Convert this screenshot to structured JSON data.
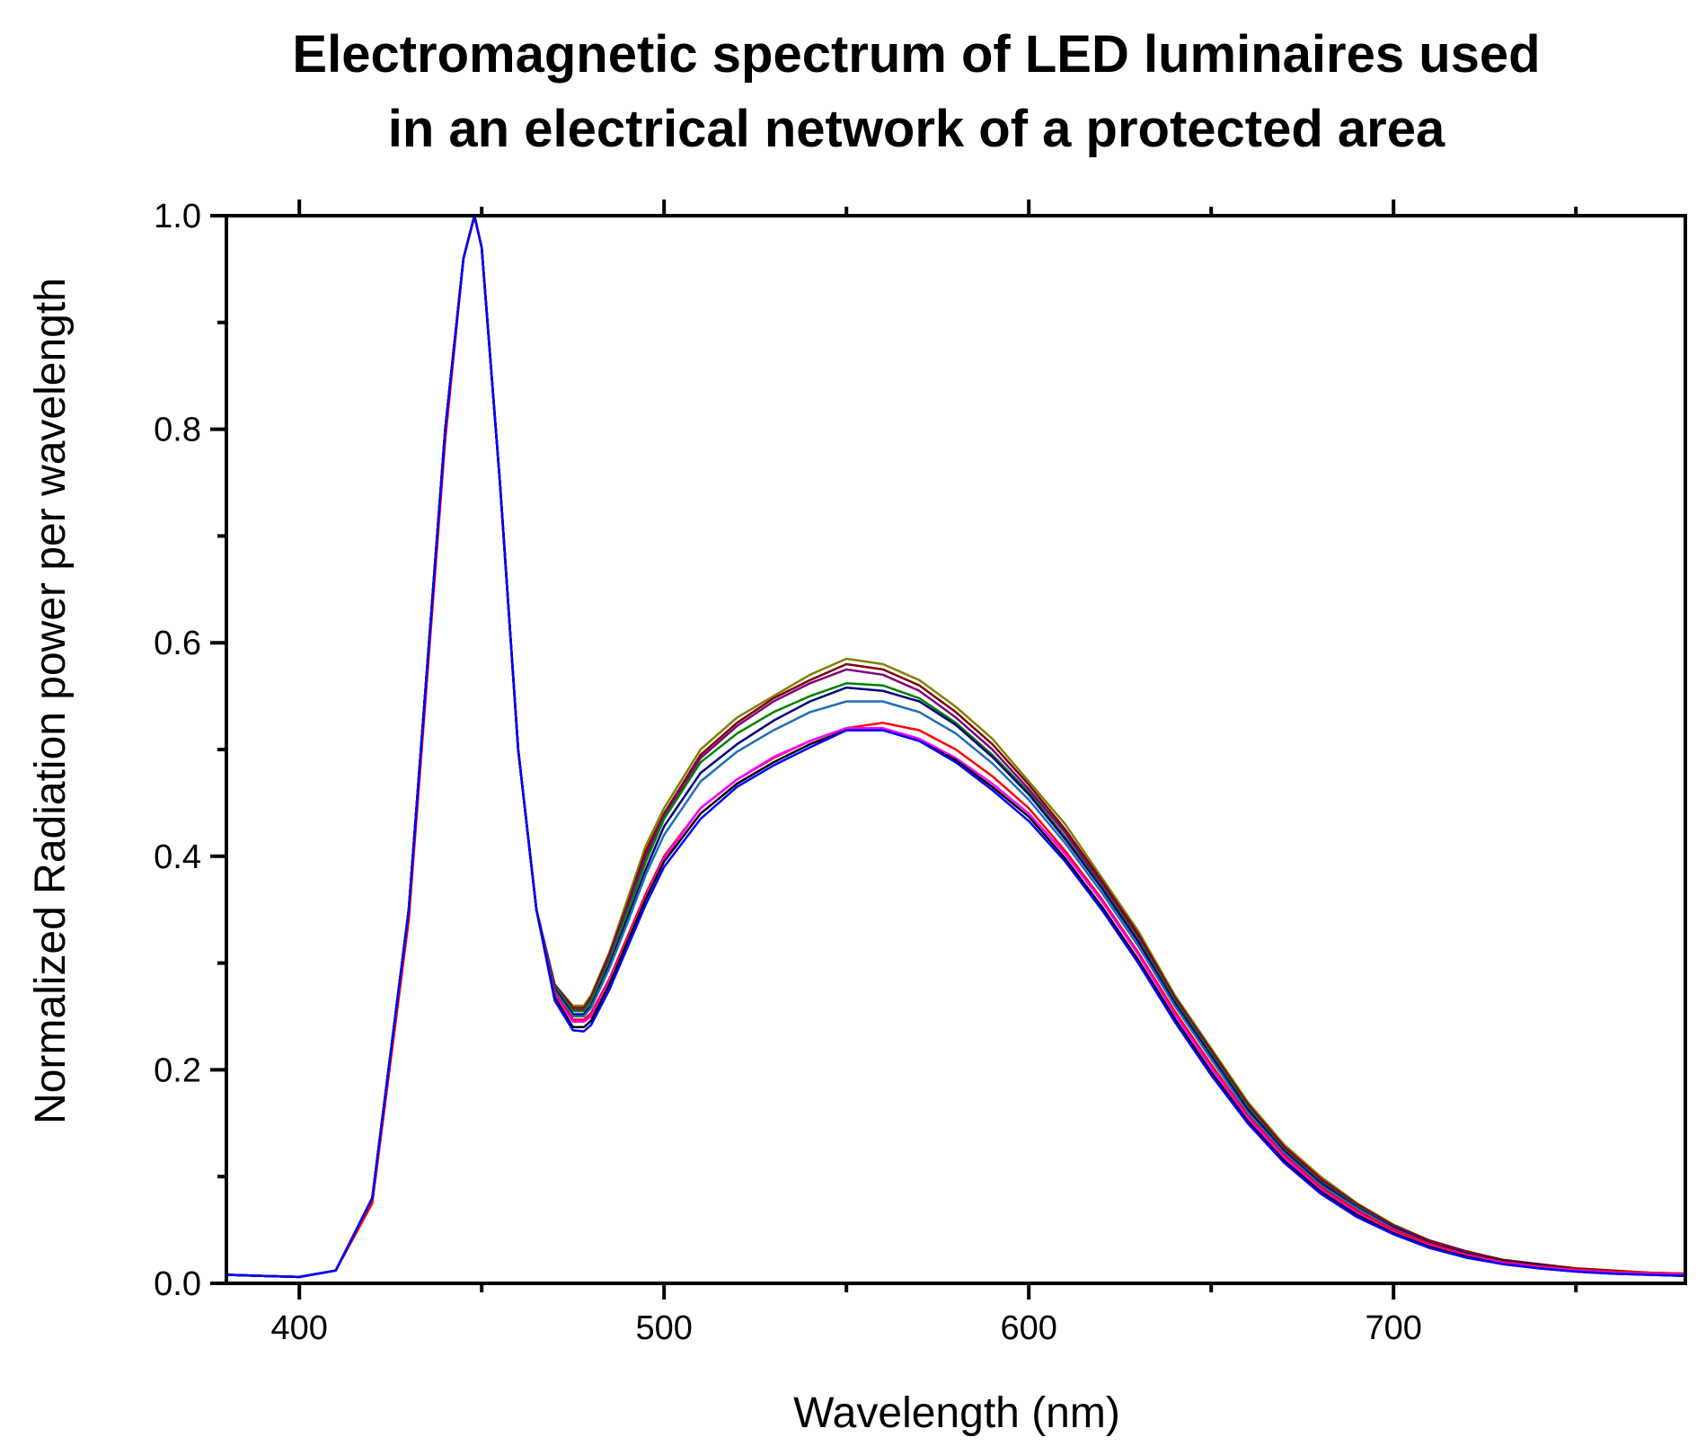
{
  "chart_data": {
    "type": "line",
    "title_lines": [
      "Electromagnetic spectrum of LED luminaires used",
      "in an electrical network of a protected area"
    ],
    "xlabel": "Wavelength (nm)",
    "ylabel": "Normalized Radiation power per wavelength",
    "xlim": [
      380,
      780
    ],
    "ylim": [
      0,
      1.0
    ],
    "xticks": [
      400,
      500,
      600,
      700
    ],
    "xtick_labels": [
      "400",
      "500",
      "600",
      "700"
    ],
    "xminor": [
      450,
      550,
      650,
      750
    ],
    "yticks": [
      0,
      0.2,
      0.4,
      0.6,
      0.8,
      1.0
    ],
    "ytick_labels": [
      "0.0",
      "0.2",
      "0.4",
      "0.6",
      "0.8",
      "1.0"
    ],
    "yminor": [
      0.1,
      0.3,
      0.5,
      0.7,
      0.9
    ],
    "grid": false,
    "legend": "none",
    "x": [
      380,
      390,
      400,
      410,
      420,
      430,
      440,
      445,
      448,
      450,
      455,
      460,
      465,
      470,
      475,
      478,
      480,
      485,
      490,
      495,
      500,
      510,
      520,
      530,
      540,
      550,
      560,
      570,
      580,
      590,
      600,
      610,
      620,
      630,
      640,
      650,
      660,
      670,
      680,
      690,
      700,
      710,
      720,
      730,
      740,
      750,
      760,
      770,
      780
    ],
    "series": [
      {
        "name": "olive",
        "color": "#808000",
        "values": [
          0.008,
          0.007,
          0.006,
          0.012,
          0.08,
          0.35,
          0.8,
          0.96,
          1.0,
          0.97,
          0.75,
          0.5,
          0.35,
          0.28,
          0.26,
          0.26,
          0.27,
          0.31,
          0.36,
          0.41,
          0.445,
          0.5,
          0.53,
          0.55,
          0.57,
          0.585,
          0.58,
          0.565,
          0.54,
          0.51,
          0.47,
          0.43,
          0.38,
          0.33,
          0.27,
          0.22,
          0.17,
          0.13,
          0.1,
          0.075,
          0.055,
          0.04,
          0.03,
          0.022,
          0.018,
          0.014,
          0.012,
          0.01,
          0.009
        ]
      },
      {
        "name": "maroon",
        "color": "#800000",
        "values": [
          0.008,
          0.007,
          0.006,
          0.012,
          0.08,
          0.35,
          0.8,
          0.96,
          1.0,
          0.97,
          0.75,
          0.5,
          0.35,
          0.28,
          0.258,
          0.258,
          0.268,
          0.308,
          0.355,
          0.405,
          0.44,
          0.495,
          0.525,
          0.548,
          0.565,
          0.58,
          0.575,
          0.56,
          0.535,
          0.505,
          0.467,
          0.425,
          0.377,
          0.327,
          0.268,
          0.218,
          0.168,
          0.128,
          0.098,
          0.074,
          0.054,
          0.04,
          0.03,
          0.022,
          0.018,
          0.014,
          0.012,
          0.01,
          0.009
        ]
      },
      {
        "name": "purple",
        "color": "#800080",
        "values": [
          0.008,
          0.007,
          0.006,
          0.012,
          0.08,
          0.35,
          0.8,
          0.96,
          1.0,
          0.97,
          0.75,
          0.5,
          0.35,
          0.28,
          0.256,
          0.256,
          0.266,
          0.305,
          0.352,
          0.4,
          0.438,
          0.492,
          0.522,
          0.545,
          0.562,
          0.575,
          0.57,
          0.555,
          0.53,
          0.5,
          0.463,
          0.422,
          0.374,
          0.324,
          0.266,
          0.216,
          0.166,
          0.126,
          0.096,
          0.073,
          0.053,
          0.039,
          0.029,
          0.021,
          0.017,
          0.013,
          0.011,
          0.009,
          0.008
        ]
      },
      {
        "name": "green",
        "color": "#008000",
        "values": [
          0.008,
          0.007,
          0.006,
          0.012,
          0.08,
          0.35,
          0.8,
          0.96,
          1.0,
          0.97,
          0.75,
          0.5,
          0.35,
          0.278,
          0.255,
          0.255,
          0.264,
          0.302,
          0.348,
          0.395,
          0.435,
          0.488,
          0.515,
          0.535,
          0.55,
          0.562,
          0.56,
          0.548,
          0.525,
          0.495,
          0.46,
          0.418,
          0.372,
          0.322,
          0.265,
          0.215,
          0.165,
          0.125,
          0.095,
          0.072,
          0.052,
          0.038,
          0.028,
          0.021,
          0.017,
          0.013,
          0.011,
          0.009,
          0.008
        ]
      },
      {
        "name": "navy",
        "color": "#000080",
        "values": [
          0.008,
          0.007,
          0.006,
          0.012,
          0.08,
          0.35,
          0.8,
          0.96,
          1.0,
          0.97,
          0.75,
          0.5,
          0.35,
          0.276,
          0.252,
          0.252,
          0.26,
          0.298,
          0.342,
          0.388,
          0.428,
          0.478,
          0.505,
          0.527,
          0.545,
          0.558,
          0.555,
          0.545,
          0.523,
          0.493,
          0.458,
          0.416,
          0.37,
          0.32,
          0.263,
          0.213,
          0.163,
          0.124,
          0.094,
          0.071,
          0.052,
          0.038,
          0.028,
          0.021,
          0.017,
          0.013,
          0.011,
          0.009,
          0.008
        ]
      },
      {
        "name": "steelblue",
        "color": "#1f6fb4",
        "values": [
          0.008,
          0.007,
          0.006,
          0.012,
          0.08,
          0.35,
          0.8,
          0.96,
          1.0,
          0.97,
          0.75,
          0.5,
          0.35,
          0.274,
          0.25,
          0.25,
          0.258,
          0.295,
          0.338,
          0.383,
          0.42,
          0.47,
          0.498,
          0.518,
          0.535,
          0.545,
          0.545,
          0.535,
          0.515,
          0.487,
          0.453,
          0.412,
          0.366,
          0.316,
          0.26,
          0.21,
          0.16,
          0.122,
          0.092,
          0.07,
          0.051,
          0.037,
          0.027,
          0.02,
          0.016,
          0.012,
          0.01,
          0.009,
          0.008
        ]
      },
      {
        "name": "red",
        "color": "#ff0000",
        "values": [
          0.008,
          0.007,
          0.006,
          0.012,
          0.075,
          0.34,
          0.79,
          0.96,
          1.0,
          0.97,
          0.75,
          0.5,
          0.35,
          0.272,
          0.247,
          0.247,
          0.253,
          0.285,
          0.325,
          0.365,
          0.4,
          0.445,
          0.472,
          0.492,
          0.508,
          0.52,
          0.525,
          0.518,
          0.5,
          0.475,
          0.445,
          0.405,
          0.36,
          0.31,
          0.255,
          0.205,
          0.157,
          0.12,
          0.09,
          0.068,
          0.05,
          0.037,
          0.027,
          0.02,
          0.016,
          0.013,
          0.011,
          0.01,
          0.009
        ]
      },
      {
        "name": "magenta",
        "color": "#ff00ff",
        "values": [
          0.008,
          0.007,
          0.006,
          0.012,
          0.08,
          0.35,
          0.8,
          0.96,
          1.0,
          0.97,
          0.75,
          0.5,
          0.35,
          0.27,
          0.245,
          0.245,
          0.25,
          0.283,
          0.322,
          0.362,
          0.398,
          0.445,
          0.472,
          0.493,
          0.508,
          0.52,
          0.52,
          0.51,
          0.492,
          0.468,
          0.44,
          0.402,
          0.358,
          0.308,
          0.252,
          0.202,
          0.155,
          0.118,
          0.088,
          0.066,
          0.048,
          0.035,
          0.026,
          0.019,
          0.015,
          0.012,
          0.01,
          0.009,
          0.008
        ]
      },
      {
        "name": "black",
        "color": "#000000",
        "values": [
          0.008,
          0.007,
          0.006,
          0.012,
          0.08,
          0.35,
          0.8,
          0.96,
          1.0,
          0.97,
          0.75,
          0.5,
          0.35,
          0.268,
          0.24,
          0.24,
          0.246,
          0.28,
          0.32,
          0.36,
          0.395,
          0.44,
          0.468,
          0.488,
          0.505,
          0.518,
          0.518,
          0.508,
          0.49,
          0.465,
          0.437,
          0.398,
          0.353,
          0.303,
          0.248,
          0.198,
          0.152,
          0.115,
          0.086,
          0.064,
          0.047,
          0.034,
          0.025,
          0.018,
          0.014,
          0.011,
          0.009,
          0.008,
          0.007
        ]
      },
      {
        "name": "blue",
        "color": "#0000ff",
        "values": [
          0.008,
          0.007,
          0.006,
          0.012,
          0.08,
          0.35,
          0.8,
          0.96,
          1.0,
          0.97,
          0.75,
          0.5,
          0.35,
          0.265,
          0.237,
          0.236,
          0.242,
          0.275,
          0.315,
          0.355,
          0.39,
          0.435,
          0.465,
          0.485,
          0.502,
          0.518,
          0.518,
          0.508,
          0.488,
          0.462,
          0.433,
          0.395,
          0.35,
          0.3,
          0.245,
          0.195,
          0.15,
          0.113,
          0.084,
          0.062,
          0.046,
          0.033,
          0.024,
          0.018,
          0.014,
          0.011,
          0.009,
          0.008,
          0.007
        ]
      }
    ]
  }
}
